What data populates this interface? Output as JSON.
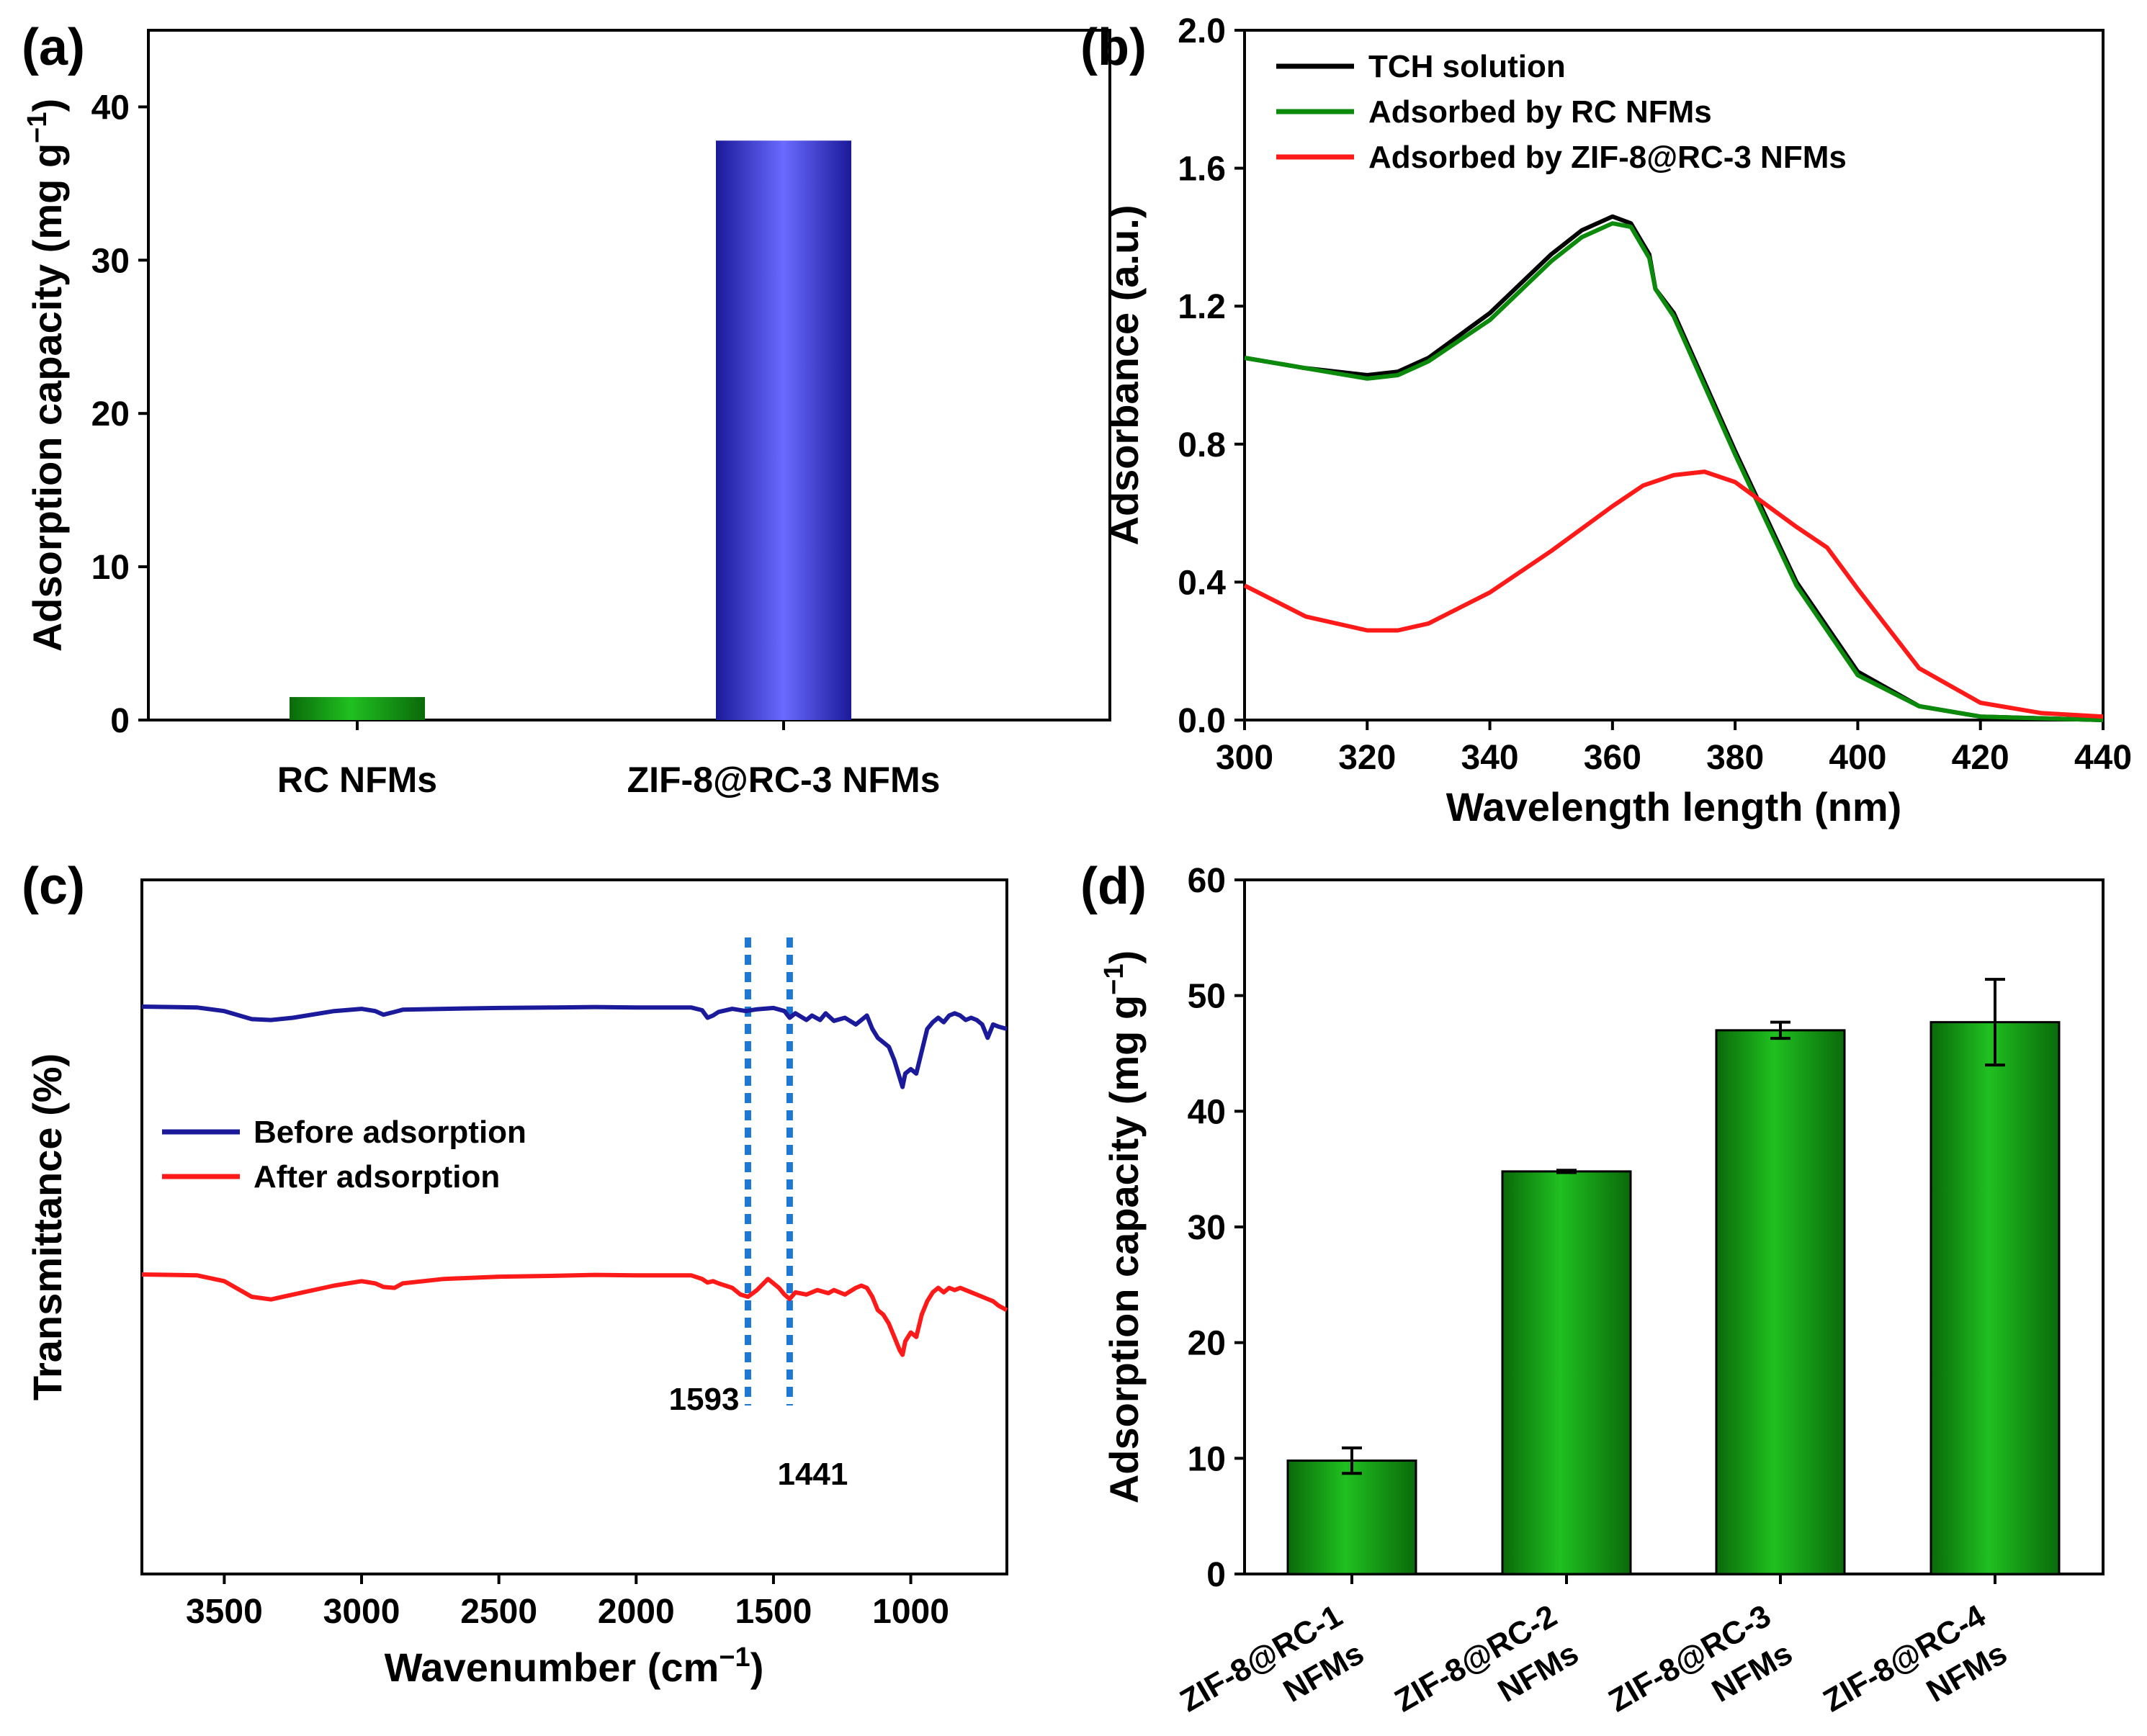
{
  "colors": {
    "green": "#0b8a0b",
    "blue": "#5a5aff",
    "black": "#000000",
    "red": "#ff1a1a",
    "navy": "#1a1a9a",
    "marker_blue": "#1f77d4"
  },
  "chart_data": [
    {
      "panel": "(a)",
      "type": "bar",
      "categories": [
        "RC NFMs",
        "ZIF-8@RC-3 NFMs"
      ],
      "values": [
        1.5,
        37.8
      ],
      "ylabel": "Adsorption capacity (mg g",
      "ylabel_sup": "−1",
      "ylabel_end": ")",
      "ylim": [
        0,
        45
      ],
      "yticks": [
        0,
        10,
        20,
        30,
        40
      ],
      "bar_colors": [
        "green",
        "blue"
      ]
    },
    {
      "panel": "(b)",
      "type": "line",
      "xlabel": "Wavelength length (nm)",
      "ylabel": "Adsorbance (a.u.)",
      "xlim": [
        300,
        440
      ],
      "ylim": [
        0,
        2.0
      ],
      "xticks": [
        300,
        320,
        340,
        360,
        380,
        400,
        420,
        440
      ],
      "yticks": [
        "0.0",
        "0.4",
        "0.8",
        "1.2",
        "1.6",
        "2.0"
      ],
      "legend": [
        "TCH solution",
        "Adsorbed by RC NFMs",
        "Adsorbed by ZIF-8@RC-3 NFMs"
      ],
      "series": [
        {
          "name": "TCH solution",
          "color": "black",
          "x": [
            300,
            310,
            320,
            325,
            330,
            340,
            350,
            355,
            360,
            363,
            365,
            366,
            367,
            370,
            380,
            390,
            400,
            410,
            420,
            430,
            440
          ],
          "y": [
            1.05,
            1.02,
            1.0,
            1.01,
            1.05,
            1.18,
            1.35,
            1.42,
            1.46,
            1.44,
            1.38,
            1.35,
            1.25,
            1.18,
            0.78,
            0.4,
            0.14,
            0.04,
            0.01,
            0.005,
            0.0
          ]
        },
        {
          "name": "Adsorbed by RC NFMs",
          "color": "green",
          "x": [
            300,
            310,
            320,
            325,
            330,
            340,
            350,
            355,
            360,
            363,
            365,
            366,
            367,
            370,
            380,
            390,
            400,
            410,
            420,
            430,
            440
          ],
          "y": [
            1.05,
            1.02,
            0.99,
            1.0,
            1.04,
            1.16,
            1.33,
            1.4,
            1.44,
            1.43,
            1.37,
            1.34,
            1.25,
            1.17,
            0.77,
            0.39,
            0.13,
            0.04,
            0.01,
            0.005,
            0.0
          ]
        },
        {
          "name": "Adsorbed by ZIF-8@RC-3 NFMs",
          "color": "red",
          "x": [
            300,
            310,
            320,
            325,
            330,
            340,
            350,
            360,
            365,
            370,
            375,
            380,
            390,
            395,
            400,
            410,
            420,
            430,
            440
          ],
          "y": [
            0.39,
            0.3,
            0.26,
            0.26,
            0.28,
            0.37,
            0.49,
            0.62,
            0.68,
            0.71,
            0.72,
            0.69,
            0.56,
            0.5,
            0.38,
            0.15,
            0.05,
            0.02,
            0.01
          ]
        }
      ]
    },
    {
      "panel": "(c)",
      "type": "line",
      "xlabel": "Wavenumber (cm",
      "xlabel_sup": "−1",
      "xlabel_end": ")",
      "ylabel": "Transmittance (%)",
      "xlim": [
        3800,
        650
      ],
      "xticks": [
        3500,
        3000,
        2500,
        2000,
        1500,
        1000
      ],
      "legend": [
        "Before adsorption",
        "After adsorption"
      ],
      "annotations": [
        {
          "text": "1593",
          "x": 1593
        },
        {
          "text": "1441",
          "x": 1441
        }
      ],
      "series": [
        {
          "name": "Before adsorption",
          "color": "navy",
          "x": [
            3800,
            3600,
            3500,
            3400,
            3330,
            3250,
            3100,
            3000,
            2950,
            2920,
            2880,
            2850,
            2700,
            2500,
            2300,
            2150,
            2000,
            1800,
            1760,
            1740,
            1720,
            1700,
            1650,
            1600,
            1560,
            1500,
            1460,
            1441,
            1420,
            1380,
            1360,
            1330,
            1310,
            1280,
            1240,
            1200,
            1160,
            1140,
            1120,
            1100,
            1080,
            1060,
            1040,
            1030,
            1020,
            1000,
            980,
            960,
            940,
            920,
            900,
            880,
            860,
            840,
            820,
            800,
            780,
            760,
            740,
            720,
            700,
            680,
            650
          ],
          "y": [
            0.0,
            0.02,
            0.1,
            0.28,
            0.3,
            0.25,
            0.1,
            0.05,
            0.1,
            0.18,
            0.12,
            0.07,
            0.05,
            0.03,
            0.02,
            0.01,
            0.02,
            0.02,
            0.08,
            0.25,
            0.2,
            0.12,
            0.05,
            0.1,
            0.06,
            0.03,
            0.1,
            0.25,
            0.15,
            0.3,
            0.2,
            0.3,
            0.15,
            0.32,
            0.25,
            0.4,
            0.2,
            0.5,
            0.7,
            0.8,
            0.9,
            1.2,
            1.6,
            1.8,
            1.5,
            1.4,
            1.5,
            1.0,
            0.5,
            0.35,
            0.25,
            0.35,
            0.2,
            0.15,
            0.2,
            0.3,
            0.25,
            0.3,
            0.4,
            0.7,
            0.4,
            0.45,
            0.5
          ]
        },
        {
          "name": "After adsorption",
          "color": "red",
          "x": [
            3800,
            3600,
            3500,
            3400,
            3330,
            3250,
            3100,
            3000,
            2950,
            2920,
            2880,
            2850,
            2700,
            2500,
            2300,
            2150,
            2000,
            1800,
            1760,
            1740,
            1720,
            1700,
            1650,
            1620,
            1593,
            1560,
            1520,
            1480,
            1460,
            1441,
            1420,
            1380,
            1340,
            1300,
            1280,
            1240,
            1200,
            1180,
            1160,
            1140,
            1120,
            1100,
            1080,
            1060,
            1040,
            1030,
            1020,
            1000,
            980,
            960,
            940,
            920,
            900,
            880,
            860,
            840,
            820,
            800,
            780,
            760,
            740,
            720,
            700,
            680,
            650
          ],
          "y": [
            0.0,
            0.02,
            0.15,
            0.5,
            0.56,
            0.45,
            0.25,
            0.15,
            0.2,
            0.28,
            0.3,
            0.2,
            0.1,
            0.05,
            0.03,
            0.01,
            0.02,
            0.02,
            0.1,
            0.18,
            0.15,
            0.2,
            0.3,
            0.45,
            0.5,
            0.35,
            0.1,
            0.3,
            0.45,
            0.55,
            0.4,
            0.45,
            0.35,
            0.42,
            0.35,
            0.45,
            0.3,
            0.25,
            0.3,
            0.5,
            0.8,
            0.9,
            1.1,
            1.4,
            1.7,
            1.8,
            1.5,
            1.3,
            1.4,
            0.9,
            0.6,
            0.4,
            0.3,
            0.4,
            0.3,
            0.35,
            0.3,
            0.35,
            0.4,
            0.45,
            0.5,
            0.55,
            0.6,
            0.7,
            0.8
          ]
        }
      ]
    },
    {
      "panel": "(d)",
      "type": "bar",
      "categories": [
        [
          "ZIF-8@RC-1",
          "NFMs"
        ],
        [
          "ZIF-8@RC-2",
          "NFMs"
        ],
        [
          "ZIF-8@RC-3",
          "NFMs"
        ],
        [
          "ZIF-8@RC-4",
          "NFMs"
        ]
      ],
      "values": [
        9.8,
        34.8,
        47.0,
        47.7
      ],
      "errors": [
        1.1,
        0.1,
        0.7,
        3.7
      ],
      "ylabel": "Adsorption capacity (mg g",
      "ylabel_sup": "−1",
      "ylabel_end": ")",
      "ylim": [
        0,
        60
      ],
      "yticks": [
        0,
        10,
        20,
        30,
        40,
        50,
        60
      ],
      "bar_color": "green"
    }
  ]
}
